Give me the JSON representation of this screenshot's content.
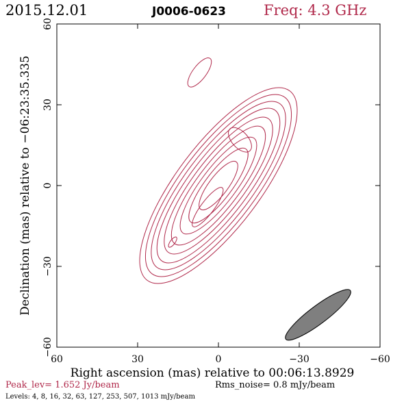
{
  "header": {
    "date": "2015.12.01",
    "source": "J0006-0623",
    "freq": "Freq: 4.3 GHz"
  },
  "footer": {
    "peak": "Peak_lev=  1.652 Jy/beam",
    "rms": "Rms_noise=  0.8 mJy/beam",
    "levels": "Levels:   4,   8,  16,  32,  63, 127, 253, 507, 1013 mJy/beam"
  },
  "colors": {
    "contour": "#b0284a",
    "frame": "#000000",
    "beam": "#7f7f7f",
    "title_red": "#b0284a"
  },
  "chart_data": {
    "type": "contour",
    "title": "",
    "xlabel": "Right ascension (mas) relative to 00:06:13.8929",
    "ylabel": "Declination (mas) relative to −06:23:35.335",
    "xlim": [
      60,
      -60
    ],
    "ylim": [
      -60,
      60
    ],
    "xticks": [
      60,
      30,
      0,
      -30,
      -60
    ],
    "yticks": [
      -60,
      -30,
      0,
      30,
      60
    ],
    "xtick_labels": [
      "60",
      "30",
      "0",
      "−30",
      "−60"
    ],
    "ytick_labels": [
      "−60",
      "−30",
      "0",
      "30",
      "60"
    ],
    "contour_levels_mJy": [
      4,
      8,
      16,
      32,
      63,
      127,
      253,
      507,
      1013
    ],
    "peak_Jy_per_beam": 1.652,
    "rms_mJy_per_beam": 0.8,
    "main_component": {
      "center": [
        0,
        0
      ],
      "pa_deg": 127,
      "contours": [
        {
          "a": 11,
          "b": 3.5
        },
        {
          "a": 17,
          "b": 5.0
        },
        {
          "a": 22,
          "b": 6.5
        },
        {
          "a": 27,
          "b": 8.0
        },
        {
          "a": 31,
          "b": 9.5
        },
        {
          "a": 35,
          "b": 11.0
        },
        {
          "a": 38,
          "b": 12.5
        },
        {
          "a": 41,
          "b": 14.0
        },
        {
          "a": 44,
          "b": 15.5
        }
      ]
    },
    "isolated_contours": [
      {
        "center": [
          -8,
          17
        ],
        "a": 5.5,
        "b": 3,
        "pa_deg": 48
      },
      {
        "center": [
          4,
          -8
        ],
        "a": 9,
        "b": 2.4,
        "pa_deg": 127
      },
      {
        "center": [
          7,
          42
        ],
        "a": 6.5,
        "b": 2.5,
        "pa_deg": 127
      },
      {
        "center": [
          17,
          -21
        ],
        "a": 2.3,
        "b": 0.9,
        "pa_deg": 127
      }
    ],
    "beam": {
      "center": [
        -37,
        -48
      ],
      "major": 15,
      "minor": 3.3,
      "pa_deg": 143
    }
  }
}
